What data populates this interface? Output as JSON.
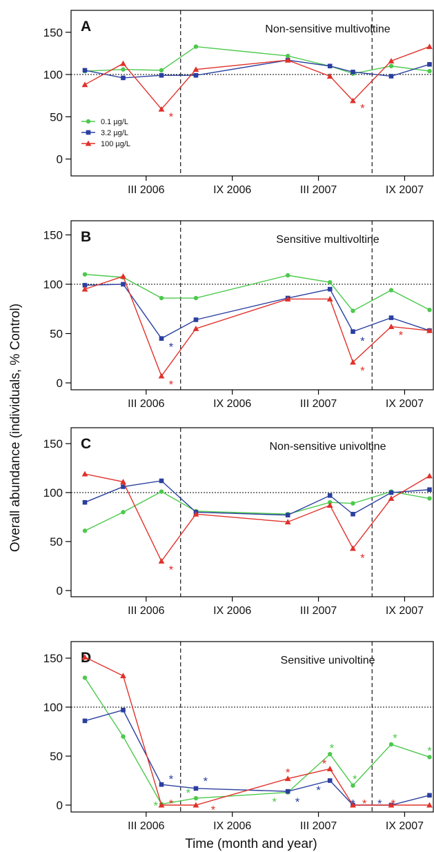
{
  "figure": {
    "ylabel": "Overall abundance (individuals, % Control)",
    "xlabel": "Time (month and year)"
  },
  "colors": {
    "0.1": "#4cc94c",
    "3.2": "#2a3f9f",
    "100": "#e0312a"
  },
  "chart_data": [
    {
      "type": "line",
      "panel": "A",
      "title": "Non-sensitive multivoltine",
      "x": [
        0,
        1,
        2,
        3,
        4,
        5,
        6,
        7,
        8,
        9,
        10
      ],
      "xticks": [
        {
          "x": 1.6,
          "label": "III 2006"
        },
        {
          "x": 3.85,
          "label": "IX 2006"
        },
        {
          "x": 6.1,
          "label": "III 2007"
        },
        {
          "x": 8.35,
          "label": "IX 2007"
        }
      ],
      "ylim": [
        0,
        160
      ],
      "yticks": [
        0,
        50,
        100,
        150
      ],
      "reference_line_y": 100,
      "dashed_vlines_x": [
        2.5,
        7.5
      ],
      "series": [
        {
          "name": "0.1 µg/L",
          "key": "0.1",
          "marker": "circle",
          "points": [
            [
              0,
              104
            ],
            [
              1,
              106
            ],
            [
              2,
              105
            ],
            [
              2.9,
              133
            ],
            [
              5.3,
              122
            ],
            [
              6.4,
              110
            ],
            [
              7,
              101
            ],
            [
              8,
              110
            ],
            [
              9,
              104
            ]
          ]
        },
        {
          "name": "3.2 µg/L",
          "key": "3.2",
          "marker": "square",
          "points": [
            [
              0,
              105
            ],
            [
              1,
              96
            ],
            [
              2,
              99
            ],
            [
              2.9,
              99
            ],
            [
              5.3,
              117
            ],
            [
              6.4,
              110
            ],
            [
              7,
              103
            ],
            [
              8,
              98
            ],
            [
              9,
              112
            ]
          ]
        },
        {
          "name": "100 µg/L",
          "key": "100",
          "marker": "triangle",
          "points": [
            [
              0,
              88
            ],
            [
              1,
              113
            ],
            [
              2,
              59
            ],
            [
              2.9,
              106
            ],
            [
              5.3,
              117
            ],
            [
              6.4,
              98
            ],
            [
              7,
              69
            ],
            [
              8,
              116
            ],
            [
              9,
              133
            ]
          ]
        }
      ],
      "annotations": [
        {
          "text": "*",
          "x": 2.25,
          "y": 52,
          "series": "100"
        },
        {
          "text": "*",
          "x": 7.25,
          "y": 62,
          "series": "100"
        }
      ],
      "legend": {
        "entries": [
          "0.1 µg/L",
          "3.2 µg/L",
          "100 µg/L"
        ],
        "placement": "left"
      }
    },
    {
      "type": "line",
      "panel": "B",
      "title": "Sensitive multivoltine",
      "ylim": [
        0,
        160
      ],
      "yticks": [
        0,
        50,
        100,
        150
      ],
      "reference_line_y": 100,
      "dashed_vlines_x": [
        2.5,
        7.5
      ],
      "series": [
        {
          "name": "0.1 µg/L",
          "key": "0.1",
          "marker": "circle",
          "points": [
            [
              0,
              110
            ],
            [
              1,
              107
            ],
            [
              2,
              86
            ],
            [
              2.9,
              86
            ],
            [
              5.3,
              109
            ],
            [
              6.4,
              102
            ],
            [
              7,
              73
            ],
            [
              8,
              94
            ],
            [
              9,
              74
            ]
          ]
        },
        {
          "name": "3.2 µg/L",
          "key": "3.2",
          "marker": "square",
          "points": [
            [
              0,
              99
            ],
            [
              1,
              100
            ],
            [
              2,
              45
            ],
            [
              2.9,
              64
            ],
            [
              5.3,
              86
            ],
            [
              6.4,
              95
            ],
            [
              7,
              52
            ],
            [
              8,
              66
            ],
            [
              9,
              53
            ]
          ]
        },
        {
          "name": "100 µg/L",
          "key": "100",
          "marker": "triangle",
          "points": [
            [
              0,
              95
            ],
            [
              1,
              108
            ],
            [
              2,
              7
            ],
            [
              2.9,
              55
            ],
            [
              5.3,
              85
            ],
            [
              6.4,
              85
            ],
            [
              7,
              21
            ],
            [
              8,
              57
            ],
            [
              9,
              53
            ]
          ]
        }
      ],
      "annotations": [
        {
          "text": "*",
          "x": 2.25,
          "y": 38,
          "series": "3.2"
        },
        {
          "text": "*",
          "x": 2.25,
          "y": 0,
          "series": "100"
        },
        {
          "text": "*",
          "x": 7.25,
          "y": 44,
          "series": "3.2"
        },
        {
          "text": "*",
          "x": 7.25,
          "y": 14,
          "series": "100"
        },
        {
          "text": "*",
          "x": 8.25,
          "y": 50,
          "series": "100"
        }
      ]
    },
    {
      "type": "line",
      "panel": "C",
      "title": "Non-sensitive univoltine",
      "ylim": [
        0,
        160
      ],
      "yticks": [
        0,
        50,
        100,
        150
      ],
      "reference_line_y": 100,
      "dashed_vlines_x": [
        2.5,
        7.5
      ],
      "series": [
        {
          "name": "0.1 µg/L",
          "key": "0.1",
          "marker": "circle",
          "points": [
            [
              0,
              61
            ],
            [
              1,
              80
            ],
            [
              2,
              101
            ],
            [
              2.9,
              81
            ],
            [
              5.3,
              78
            ],
            [
              6.4,
              90
            ],
            [
              7,
              89
            ],
            [
              8,
              101
            ],
            [
              9,
              94
            ]
          ]
        },
        {
          "name": "3.2 µg/L",
          "key": "3.2",
          "marker": "square",
          "points": [
            [
              0,
              90
            ],
            [
              1,
              106
            ],
            [
              2,
              112
            ],
            [
              2.9,
              80
            ],
            [
              5.3,
              77
            ],
            [
              6.4,
              97
            ],
            [
              7,
              78
            ],
            [
              8,
              100
            ],
            [
              9,
              103
            ]
          ]
        },
        {
          "name": "100 µg/L",
          "key": "100",
          "marker": "triangle",
          "points": [
            [
              0,
              119
            ],
            [
              1,
              111
            ],
            [
              2,
              30
            ],
            [
              2.9,
              78
            ],
            [
              5.3,
              70
            ],
            [
              6.4,
              87
            ],
            [
              7,
              43
            ],
            [
              8,
              94
            ],
            [
              9,
              117
            ]
          ]
        }
      ],
      "annotations": [
        {
          "text": "*",
          "x": 2.25,
          "y": 23,
          "series": "100"
        },
        {
          "text": "*",
          "x": 7.25,
          "y": 35,
          "series": "100"
        }
      ]
    },
    {
      "type": "line",
      "panel": "D",
      "title": "Sensitive univoltine",
      "ylim": [
        0,
        160
      ],
      "yticks": [
        0,
        50,
        100,
        150
      ],
      "reference_line_y": 100,
      "dashed_vlines_x": [
        2.5,
        7.5
      ],
      "xlabel": "Time (month and year)",
      "series": [
        {
          "name": "0.1 µg/L",
          "key": "0.1",
          "marker": "circle",
          "points": [
            [
              0,
              130
            ],
            [
              1,
              70
            ],
            [
              2,
              1
            ],
            [
              2.9,
              7
            ],
            [
              5.3,
              13
            ],
            [
              6.4,
              52
            ],
            [
              7,
              20
            ],
            [
              8,
              62
            ],
            [
              9,
              49
            ]
          ]
        },
        {
          "name": "3.2 µg/L",
          "key": "3.2",
          "marker": "square",
          "points": [
            [
              0,
              86
            ],
            [
              1,
              97
            ],
            [
              2,
              21
            ],
            [
              2.9,
              17
            ],
            [
              5.3,
              14
            ],
            [
              6.4,
              25
            ],
            [
              7,
              0
            ],
            [
              8,
              0
            ],
            [
              9,
              10
            ]
          ]
        },
        {
          "name": "100 µg/L",
          "key": "100",
          "marker": "triangle",
          "points": [
            [
              0,
              151
            ],
            [
              1,
              132
            ],
            [
              2,
              0
            ],
            [
              2.9,
              0
            ],
            [
              5.3,
              27
            ],
            [
              6.4,
              37
            ],
            [
              7,
              0
            ],
            [
              8,
              0
            ],
            [
              9,
              0
            ]
          ]
        }
      ],
      "annotations": [
        {
          "text": "*",
          "x": 1.85,
          "y": 1,
          "series": "0.1"
        },
        {
          "text": "*",
          "x": 2.25,
          "y": 28,
          "series": "3.2"
        },
        {
          "text": "*",
          "x": 2.25,
          "y": 3,
          "series": "100"
        },
        {
          "text": "*",
          "x": 2.7,
          "y": 14,
          "series": "0.1"
        },
        {
          "text": "*",
          "x": 3.15,
          "y": 26,
          "series": "3.2"
        },
        {
          "text": "*",
          "x": 3.35,
          "y": -3,
          "series": "100"
        },
        {
          "text": "*",
          "x": 4.95,
          "y": 5,
          "series": "0.1"
        },
        {
          "text": "*",
          "x": 5.3,
          "y": 35,
          "series": "100"
        },
        {
          "text": "*",
          "x": 5.55,
          "y": 5,
          "series": "3.2"
        },
        {
          "text": "*",
          "x": 6.1,
          "y": 17,
          "series": "3.2"
        },
        {
          "text": "*",
          "x": 6.25,
          "y": 44,
          "series": "100"
        },
        {
          "text": "*",
          "x": 6.45,
          "y": 60,
          "series": "0.1"
        },
        {
          "text": "*",
          "x": 7.05,
          "y": 28,
          "series": "0.1"
        },
        {
          "text": "*",
          "x": 7.0,
          "y": 3,
          "series": "3.2"
        },
        {
          "text": "*",
          "x": 7.3,
          "y": 3,
          "series": "100"
        },
        {
          "text": "*",
          "x": 7.7,
          "y": 3,
          "series": "3.2"
        },
        {
          "text": "*",
          "x": 8.1,
          "y": 70,
          "series": "0.1"
        },
        {
          "text": "*",
          "x": 8.05,
          "y": 3,
          "series": "100"
        },
        {
          "text": "*",
          "x": 9.0,
          "y": 57,
          "series": "0.1"
        },
        {
          "text": "*",
          "x": 9.15,
          "y": 14,
          "series": "3.2"
        },
        {
          "text": "*",
          "x": 9.2,
          "y": 2,
          "series": "100"
        }
      ]
    }
  ]
}
